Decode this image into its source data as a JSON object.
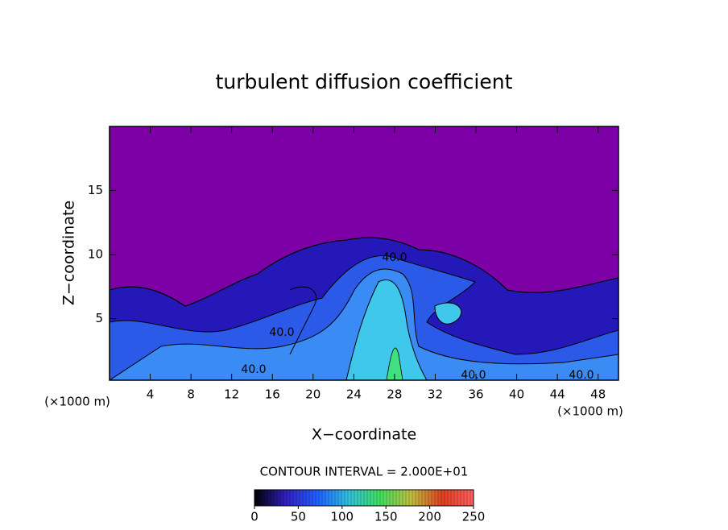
{
  "chart_data": {
    "type": "contour",
    "title": "turbulent diffusion coefficient",
    "x_label": "X−coordinate",
    "y_label": "Z−coordinate",
    "x_unit_label": "(×1000 m)",
    "xlim": [
      0,
      50
    ],
    "xticks": [
      4,
      8,
      12,
      16,
      20,
      24,
      28,
      32,
      36,
      40,
      44,
      48
    ],
    "ylim": [
      0.2,
      20
    ],
    "yticks": [
      5,
      10,
      15
    ],
    "contour_interval_label": "CONTOUR INTERVAL = 2.000E+01",
    "contour_labels": [
      "40.0",
      "40.0",
      "40.0",
      "40.0",
      "40.0"
    ],
    "background_color": "#7d00a6",
    "colorbar": {
      "lim": [
        0,
        250
      ],
      "ticks": [
        0,
        50,
        100,
        150,
        200,
        250
      ],
      "colors": [
        "#000000",
        "#3020c0",
        "#2060ff",
        "#30c0e0",
        "#40e060",
        "#c0c040",
        "#e04020",
        "#ff6060"
      ]
    }
  }
}
